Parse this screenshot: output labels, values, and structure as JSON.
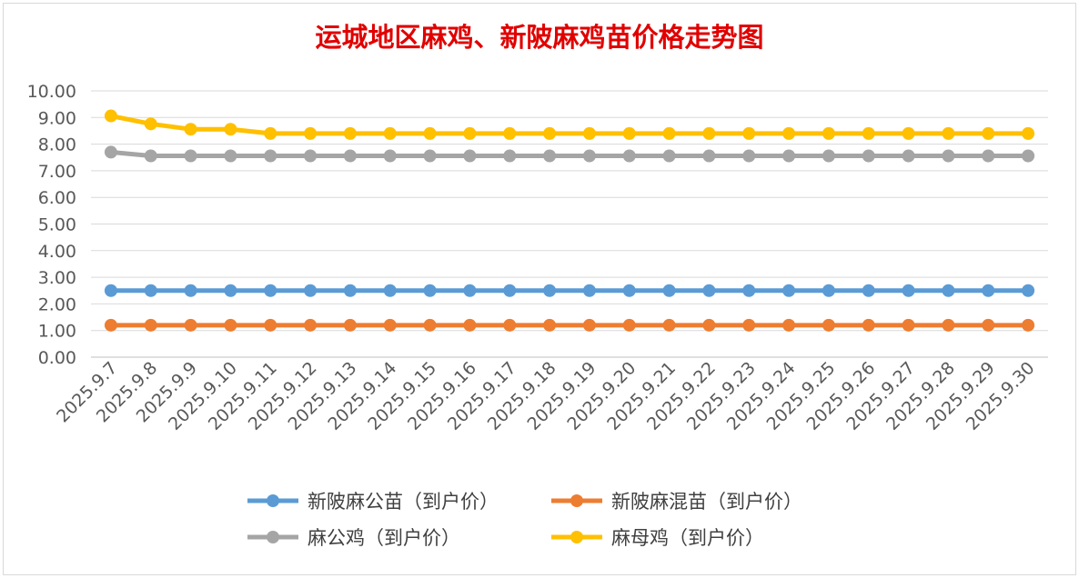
{
  "chart_data": {
    "type": "line",
    "title": "运城地区麻鸡、新陂麻鸡苗价格走势图",
    "xlabel": "",
    "ylabel": "",
    "ylim": [
      0,
      10
    ],
    "ytick_labels": [
      "0.00",
      "1.00",
      "2.00",
      "3.00",
      "4.00",
      "5.00",
      "6.00",
      "7.00",
      "8.00",
      "9.00",
      "10.00"
    ],
    "grid": true,
    "legend_position": "bottom",
    "categories": [
      "2025.9.7",
      "2025.9.8",
      "2025.9.9",
      "2025.9.10",
      "2025.9.11",
      "2025.9.12",
      "2025.9.13",
      "2025.9.14",
      "2025.9.15",
      "2025.9.16",
      "2025.9.17",
      "2025.9.18",
      "2025.9.19",
      "2025.9.20",
      "2025.9.21",
      "2025.9.22",
      "2025.9.23",
      "2025.9.24",
      "2025.9.25",
      "2025.9.26",
      "2025.9.27",
      "2025.9.28",
      "2025.9.29",
      "2025.9.30"
    ],
    "series": [
      {
        "name": "新陂麻公苗（到户价）",
        "color": "#5b9bd5",
        "values": [
          2.5,
          2.5,
          2.5,
          2.5,
          2.5,
          2.5,
          2.5,
          2.5,
          2.5,
          2.5,
          2.5,
          2.5,
          2.5,
          2.5,
          2.5,
          2.5,
          2.5,
          2.5,
          2.5,
          2.5,
          2.5,
          2.5,
          2.5,
          2.5
        ]
      },
      {
        "name": "新陂麻混苗（到户价）",
        "color": "#ed7d31",
        "values": [
          1.2,
          1.2,
          1.2,
          1.2,
          1.2,
          1.2,
          1.2,
          1.2,
          1.2,
          1.2,
          1.2,
          1.2,
          1.2,
          1.2,
          1.2,
          1.2,
          1.2,
          1.2,
          1.2,
          1.2,
          1.2,
          1.2,
          1.2,
          1.2
        ]
      },
      {
        "name": "麻公鸡（到户价）",
        "color": "#a5a5a5",
        "values": [
          7.7,
          7.56,
          7.56,
          7.56,
          7.56,
          7.56,
          7.56,
          7.56,
          7.56,
          7.56,
          7.56,
          7.56,
          7.56,
          7.56,
          7.56,
          7.56,
          7.56,
          7.56,
          7.56,
          7.56,
          7.56,
          7.56,
          7.56,
          7.56
        ]
      },
      {
        "name": "麻母鸡（到户价）",
        "color": "#ffc000",
        "values": [
          9.06,
          8.76,
          8.56,
          8.56,
          8.4,
          8.4,
          8.4,
          8.4,
          8.4,
          8.4,
          8.4,
          8.4,
          8.4,
          8.4,
          8.4,
          8.4,
          8.4,
          8.4,
          8.4,
          8.4,
          8.4,
          8.4,
          8.4,
          8.4
        ]
      }
    ]
  }
}
